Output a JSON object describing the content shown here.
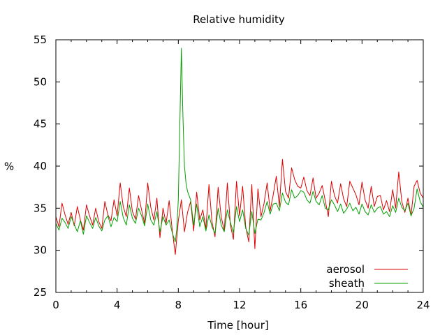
{
  "chart_data": {
    "type": "line",
    "title": "Relative humidity",
    "xlabel": "Time [hour]",
    "ylabel": "%",
    "xlim": [
      0,
      24
    ],
    "ylim": [
      25,
      55
    ],
    "xticks": [
      0,
      4,
      8,
      12,
      16,
      20,
      24
    ],
    "yticks": [
      25,
      30,
      35,
      40,
      45,
      50,
      55
    ],
    "grid": false,
    "legend_position": "bottom-right",
    "series": [
      {
        "name": "aerosol",
        "color": "#dd0000",
        "x": [
          0.0,
          0.2,
          0.4,
          0.6,
          0.8,
          1.0,
          1.2,
          1.4,
          1.6,
          1.8,
          2.0,
          2.2,
          2.4,
          2.6,
          2.8,
          3.0,
          3.2,
          3.4,
          3.6,
          3.8,
          4.0,
          4.2,
          4.4,
          4.6,
          4.8,
          5.0,
          5.2,
          5.4,
          5.6,
          5.8,
          6.0,
          6.2,
          6.4,
          6.6,
          6.8,
          7.0,
          7.2,
          7.4,
          7.6,
          7.8,
          8.0,
          8.2,
          8.4,
          8.6,
          8.8,
          9.0,
          9.2,
          9.4,
          9.6,
          9.8,
          10.0,
          10.2,
          10.4,
          10.6,
          10.8,
          11.0,
          11.2,
          11.4,
          11.6,
          11.8,
          12.0,
          12.2,
          12.4,
          12.6,
          12.8,
          13.0,
          13.2,
          13.4,
          13.6,
          13.8,
          14.0,
          14.2,
          14.4,
          14.6,
          14.8,
          15.0,
          15.2,
          15.4,
          15.6,
          15.8,
          16.0,
          16.2,
          16.4,
          16.6,
          16.8,
          17.0,
          17.2,
          17.4,
          17.6,
          17.8,
          18.0,
          18.2,
          18.4,
          18.6,
          18.8,
          19.0,
          19.2,
          19.4,
          19.6,
          19.8,
          20.0,
          20.2,
          20.4,
          20.6,
          20.8,
          21.0,
          21.2,
          21.4,
          21.6,
          21.8,
          22.0,
          22.2,
          22.4,
          22.6,
          22.8,
          23.0,
          23.2,
          23.4,
          23.6,
          23.8,
          24.0
        ],
        "y": [
          34.0,
          32.8,
          35.6,
          34.2,
          33.1,
          34.5,
          32.9,
          35.2,
          33.6,
          32.4,
          35.4,
          34.1,
          33.0,
          35.0,
          33.4,
          32.6,
          35.8,
          34.2,
          33.5,
          36.0,
          34.1,
          38.0,
          35.2,
          34.0,
          37.4,
          34.6,
          33.7,
          36.5,
          34.8,
          33.2,
          38.0,
          35.1,
          33.6,
          36.2,
          31.5,
          35.0,
          33.2,
          35.9,
          32.4,
          29.5,
          33.5,
          36.0,
          32.2,
          34.5,
          35.8,
          32.3,
          36.9,
          33.6,
          34.8,
          32.6,
          37.8,
          33.4,
          31.6,
          37.5,
          34.0,
          32.3,
          38.0,
          33.0,
          31.3,
          38.2,
          34.1,
          37.6,
          32.8,
          31.0,
          37.8,
          30.2,
          37.3,
          34.0,
          35.6,
          38.0,
          34.7,
          36.6,
          38.8,
          35.2,
          40.8,
          37.0,
          36.2,
          39.8,
          38.4,
          37.6,
          37.4,
          38.7,
          37.1,
          36.5,
          38.6,
          36.2,
          36.8,
          37.7,
          35.9,
          34.0,
          38.2,
          36.5,
          35.6,
          37.9,
          36.1,
          35.2,
          38.2,
          37.4,
          36.6,
          35.4,
          38.1,
          36.0,
          35.0,
          37.6,
          35.2,
          36.4,
          36.5,
          34.8,
          35.9,
          34.6,
          37.2,
          35.0,
          39.3,
          35.8,
          34.5,
          36.2,
          34.1,
          37.6,
          38.3,
          36.8,
          36.2
        ]
      },
      {
        "name": "sheath",
        "color": "#00a000",
        "x": [
          0.0,
          0.2,
          0.4,
          0.6,
          0.8,
          1.0,
          1.2,
          1.4,
          1.6,
          1.8,
          2.0,
          2.2,
          2.4,
          2.6,
          2.8,
          3.0,
          3.2,
          3.4,
          3.6,
          3.8,
          4.0,
          4.2,
          4.4,
          4.6,
          4.8,
          5.0,
          5.2,
          5.4,
          5.6,
          5.8,
          6.0,
          6.2,
          6.4,
          6.6,
          6.8,
          7.0,
          7.2,
          7.4,
          7.6,
          7.8,
          7.9,
          8.0,
          8.1,
          8.2,
          8.3,
          8.4,
          8.5,
          8.6,
          8.8,
          9.0,
          9.2,
          9.4,
          9.6,
          9.8,
          10.0,
          10.2,
          10.4,
          10.6,
          10.8,
          11.0,
          11.2,
          11.4,
          11.6,
          11.8,
          12.0,
          12.2,
          12.4,
          12.6,
          12.8,
          13.0,
          13.2,
          13.4,
          13.6,
          13.8,
          14.0,
          14.2,
          14.4,
          14.6,
          14.8,
          15.0,
          15.2,
          15.4,
          15.6,
          15.8,
          16.0,
          16.2,
          16.4,
          16.6,
          16.8,
          17.0,
          17.2,
          17.4,
          17.6,
          17.8,
          18.0,
          18.2,
          18.4,
          18.6,
          18.8,
          19.0,
          19.2,
          19.4,
          19.6,
          19.8,
          20.0,
          20.2,
          20.4,
          20.6,
          20.8,
          21.0,
          21.2,
          21.4,
          21.6,
          21.8,
          22.0,
          22.2,
          22.4,
          22.6,
          22.8,
          23.0,
          23.2,
          23.4,
          23.6,
          23.8,
          24.0
        ],
        "y": [
          33.2,
          32.4,
          33.8,
          33.3,
          32.6,
          34.0,
          33.1,
          32.2,
          33.5,
          31.9,
          34.1,
          33.3,
          32.6,
          33.9,
          32.9,
          32.3,
          33.6,
          34.1,
          32.8,
          33.9,
          33.4,
          35.8,
          33.9,
          33.0,
          35.4,
          33.8,
          33.2,
          35.0,
          34.1,
          32.9,
          35.5,
          33.6,
          33.0,
          34.6,
          32.2,
          34.0,
          33.0,
          33.6,
          32.1,
          31.0,
          32.5,
          36.0,
          45.0,
          54.0,
          46.0,
          40.0,
          38.0,
          37.0,
          36.0,
          33.0,
          35.5,
          32.8,
          34.0,
          32.3,
          34.2,
          32.8,
          32.0,
          35.0,
          33.0,
          32.2,
          34.8,
          33.3,
          32.1,
          35.2,
          33.4,
          34.8,
          32.6,
          31.8,
          34.6,
          32.0,
          33.7,
          33.6,
          34.5,
          35.8,
          34.3,
          35.5,
          35.6,
          34.7,
          36.8,
          35.7,
          35.4,
          37.2,
          36.2,
          36.5,
          37.1,
          36.9,
          36.0,
          35.6,
          37.0,
          35.8,
          35.4,
          36.5,
          35.0,
          34.8,
          36.0,
          35.4,
          34.6,
          35.5,
          34.4,
          34.9,
          35.6,
          34.7,
          35.1,
          34.3,
          35.5,
          34.6,
          34.2,
          35.4,
          34.5,
          35.0,
          35.2,
          34.3,
          34.6,
          34.0,
          35.3,
          34.5,
          36.2,
          35.1,
          34.7,
          35.6,
          34.1,
          35.0,
          37.3,
          35.8,
          35.1
        ]
      }
    ]
  }
}
